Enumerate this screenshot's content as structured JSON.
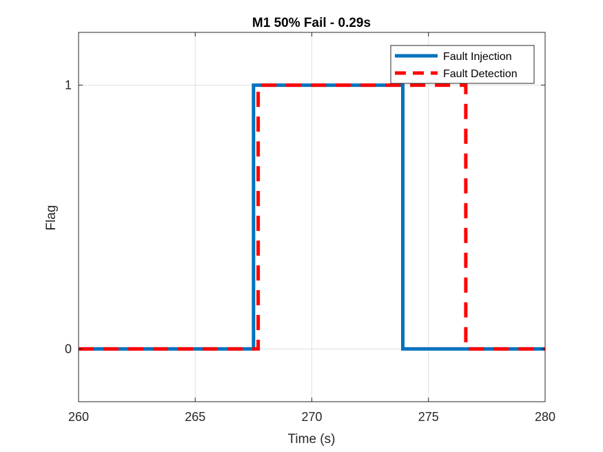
{
  "chart_data": {
    "type": "line",
    "title": "M1 50% Fail - 0.29s",
    "xlabel": "Time (s)",
    "ylabel": "Flag",
    "xlim": [
      260,
      280
    ],
    "ylim": [
      -0.2,
      1.2
    ],
    "xticks": [
      260,
      265,
      270,
      275,
      280
    ],
    "yticks": [
      0,
      1
    ],
    "grid": true,
    "legend_position": "top-right",
    "series": [
      {
        "name": "Fault Injection",
        "color": "#0072BD",
        "style": "solid",
        "x": [
          260,
          267.5,
          267.5,
          273.9,
          273.9,
          280
        ],
        "y": [
          0,
          0,
          1,
          1,
          0,
          0
        ]
      },
      {
        "name": "Fault Detection",
        "color": "#FF0000",
        "style": "dashed",
        "x": [
          260,
          267.7,
          267.7,
          276.6,
          276.6,
          280
        ],
        "y": [
          0,
          0,
          1,
          1,
          0,
          0
        ]
      }
    ]
  }
}
